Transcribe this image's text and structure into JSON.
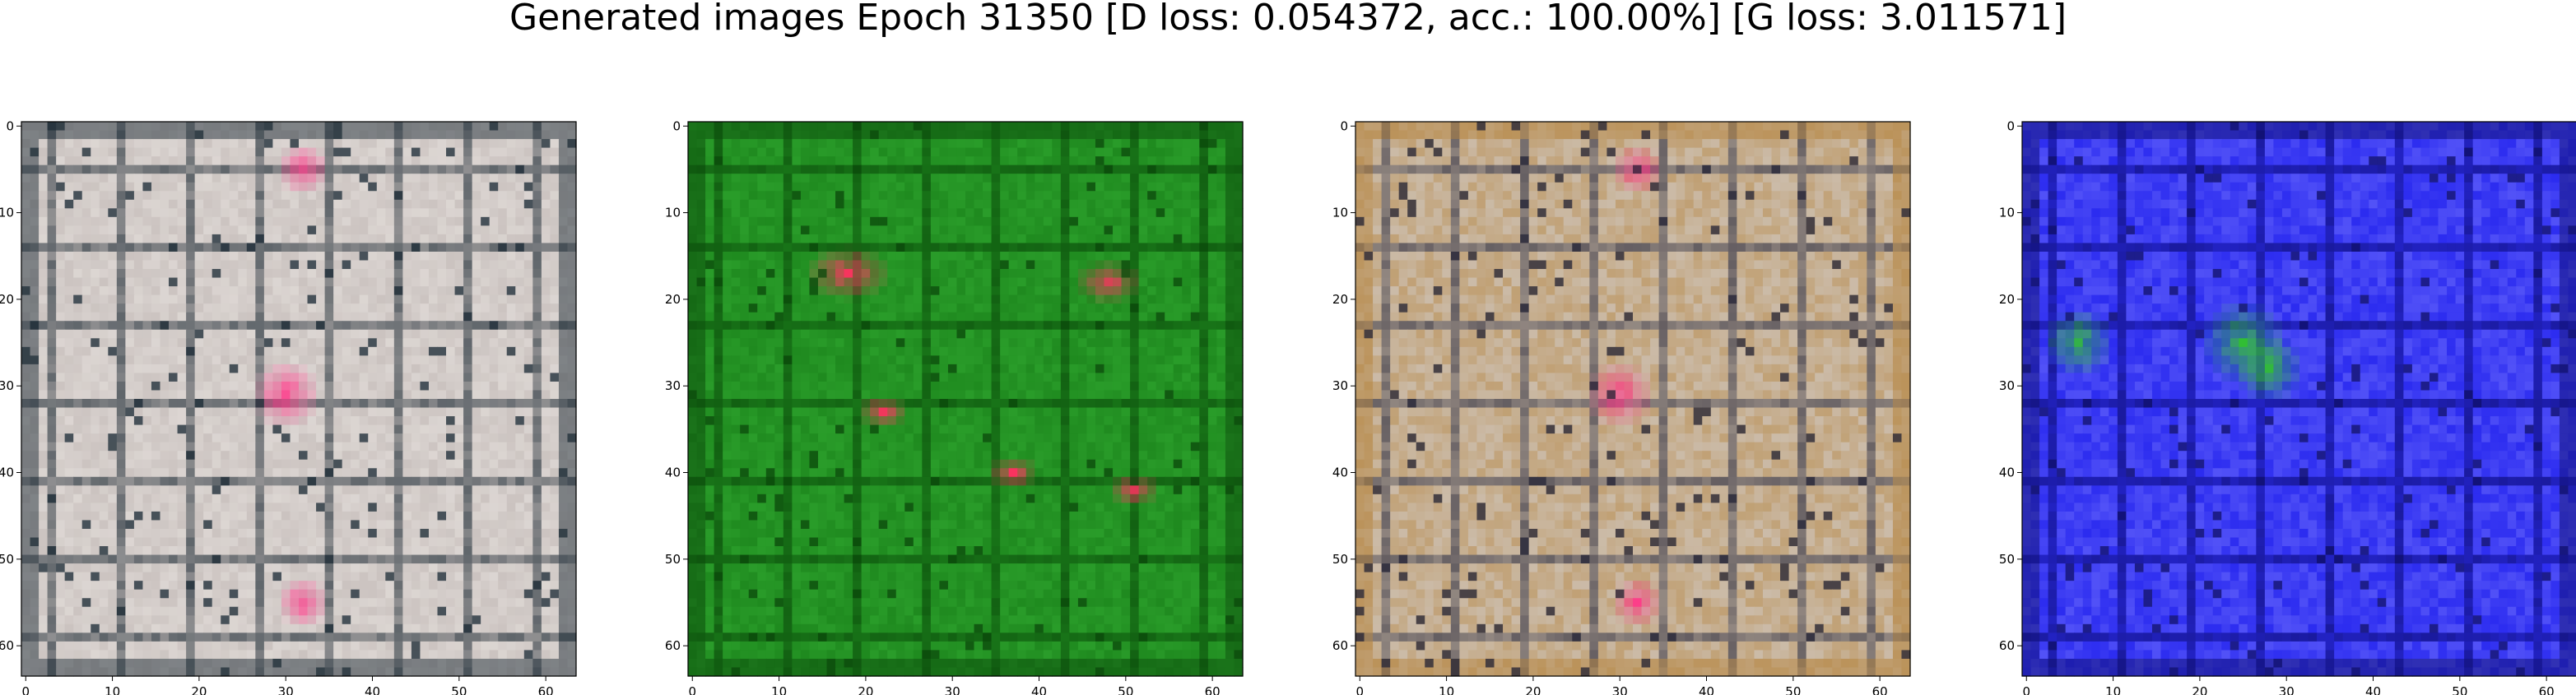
{
  "figure": {
    "title": "Generated images Epoch 31350 [D loss: 0.054372, acc.: 100.00%] [G loss: 3.011571]"
  },
  "panels": [
    {
      "id": "sample-1",
      "colors": {
        "base": "#cbc3c0",
        "accent": "#ff3b8a",
        "dark": "#22303a",
        "light": "#eeeae6"
      }
    },
    {
      "id": "sample-2",
      "colors": {
        "base": "#1f8a1f",
        "accent": "#ff3060",
        "dark": "#0b4a0b",
        "light": "#35b035"
      }
    },
    {
      "id": "sample-3",
      "colors": {
        "base": "#cbbba8",
        "accent": "#ff3b8a",
        "dark": "#2b2a3a",
        "light": "#b5843e"
      }
    },
    {
      "id": "sample-4",
      "colors": {
        "base": "#2c2cf0",
        "accent": "#30c030",
        "dark": "#101070",
        "light": "#7a7aff"
      }
    }
  ],
  "axes": {
    "xticks": [
      "0",
      "10",
      "20",
      "30",
      "40",
      "50",
      "60"
    ],
    "yticks": [
      "0",
      "10",
      "20",
      "30",
      "40",
      "50",
      "60"
    ],
    "image_size": 64
  }
}
